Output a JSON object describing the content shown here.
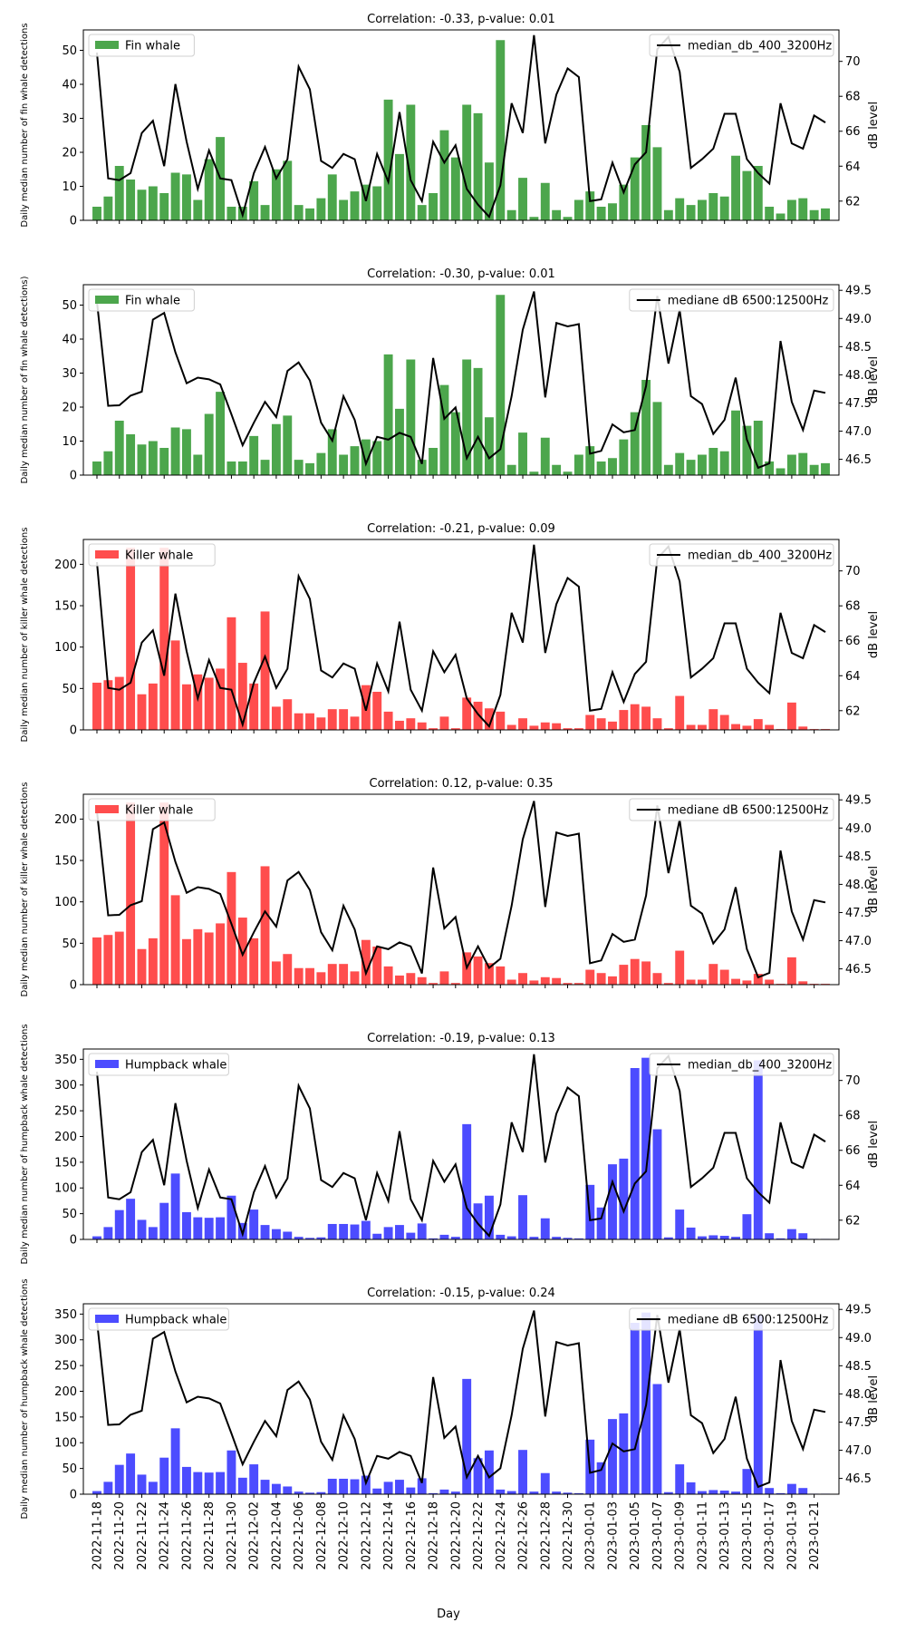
{
  "figure": {
    "xlabel": "Day"
  },
  "legend_colors": {
    "fin": "#4ca64c",
    "killer": "#ff4d4d",
    "humpback": "#4c4cff",
    "line": "#000000"
  },
  "chart_data": [
    {
      "type": "bar",
      "title": "Correlation: -0.33, p-value: 0.01",
      "ylabel": "Daily median number of fin whale detections",
      "y2label": "dB level",
      "bar_series": "Fin whale",
      "line_series": "median_db_400_3200Hz",
      "color": "#4ca64c",
      "ylim": [
        0,
        56
      ],
      "yticks": [
        0,
        10,
        20,
        30,
        40,
        50
      ],
      "y2lim": [
        60.9,
        71.8
      ],
      "y2ticks": [
        62,
        64,
        66,
        68,
        70
      ],
      "bar_key": "fin",
      "line_key": "db400"
    },
    {
      "type": "bar",
      "title": "Correlation: -0.30, p-value: 0.01",
      "ylabel": "Daily median number of fin whale detections)",
      "y2label": "dB level",
      "bar_series": "Fin whale",
      "line_series": "mediane dB 6500:12500Hz",
      "color": "#4ca64c",
      "ylim": [
        0,
        56
      ],
      "yticks": [
        0,
        10,
        20,
        30,
        40,
        50
      ],
      "y2lim": [
        46.22,
        49.6
      ],
      "y2ticks": [
        46.5,
        47.0,
        47.5,
        48.0,
        48.5,
        49.0,
        49.5
      ],
      "bar_key": "fin",
      "line_key": "db6500"
    },
    {
      "type": "bar",
      "title": "Correlation: -0.21, p-value: 0.09",
      "ylabel": "Daily median number of killer whale detections",
      "y2label": "dB level",
      "bar_series": "Killer whale",
      "line_series": "median_db_400_3200Hz",
      "color": "#ff4d4d",
      "ylim": [
        0,
        230
      ],
      "yticks": [
        0,
        50,
        100,
        150,
        200
      ],
      "y2lim": [
        60.9,
        71.8
      ],
      "y2ticks": [
        62,
        64,
        66,
        68,
        70
      ],
      "bar_key": "killer",
      "line_key": "db400"
    },
    {
      "type": "bar",
      "title": "Correlation: 0.12, p-value: 0.35",
      "ylabel": "Daily median number of killer whale detections",
      "y2label": "dB level",
      "bar_series": "Killer whale",
      "line_series": "mediane dB 6500:12500Hz",
      "color": "#ff4d4d",
      "ylim": [
        0,
        230
      ],
      "yticks": [
        0,
        50,
        100,
        150,
        200
      ],
      "y2lim": [
        46.22,
        49.6
      ],
      "y2ticks": [
        46.5,
        47.0,
        47.5,
        48.0,
        48.5,
        49.0,
        49.5
      ],
      "bar_key": "killer",
      "line_key": "db6500"
    },
    {
      "type": "bar",
      "title": "Correlation: -0.19, p-value: 0.13",
      "ylabel": "Daily median number of humpback whale detections",
      "y2label": "dB level",
      "bar_series": "Humpback whale",
      "line_series": "median_db_400_3200Hz",
      "color": "#4c4cff",
      "ylim": [
        0,
        370
      ],
      "yticks": [
        0,
        50,
        100,
        150,
        200,
        250,
        300,
        350
      ],
      "y2lim": [
        60.9,
        71.8
      ],
      "y2ticks": [
        62,
        64,
        66,
        68,
        70
      ],
      "bar_key": "humpback",
      "line_key": "db400"
    },
    {
      "type": "bar",
      "title": "Correlation: -0.15, p-value: 0.24",
      "ylabel": "Daily median number of humpback whale detections",
      "y2label": "dB level",
      "bar_series": "Humpback whale",
      "line_series": "mediane dB 6500:12500Hz",
      "color": "#4c4cff",
      "ylim": [
        0,
        370
      ],
      "yticks": [
        0,
        50,
        100,
        150,
        200,
        250,
        300,
        350
      ],
      "y2lim": [
        46.22,
        49.6
      ],
      "y2ticks": [
        46.5,
        47.0,
        47.5,
        48.0,
        48.5,
        49.0,
        49.5
      ],
      "bar_key": "humpback",
      "line_key": "db6500",
      "show_xticklabels": true
    }
  ],
  "series": {
    "dates": [
      "2022-11-18",
      "2022-11-19",
      "2022-11-20",
      "2022-11-21",
      "2022-11-22",
      "2022-11-23",
      "2022-11-24",
      "2022-11-25",
      "2022-11-26",
      "2022-11-27",
      "2022-11-28",
      "2022-11-29",
      "2022-11-30",
      "2022-12-01",
      "2022-12-02",
      "2022-12-03",
      "2022-12-04",
      "2022-12-05",
      "2022-12-06",
      "2022-12-07",
      "2022-12-08",
      "2022-12-09",
      "2022-12-10",
      "2022-12-11",
      "2022-12-12",
      "2022-12-13",
      "2022-12-14",
      "2022-12-15",
      "2022-12-16",
      "2022-12-17",
      "2022-12-18",
      "2022-12-19",
      "2022-12-20",
      "2022-12-21",
      "2022-12-22",
      "2022-12-23",
      "2022-12-24",
      "2022-12-25",
      "2022-12-26",
      "2022-12-27",
      "2022-12-28",
      "2022-12-29",
      "2022-12-30",
      "2022-12-31",
      "2023-01-01",
      "2023-01-02",
      "2023-01-03",
      "2023-01-04",
      "2023-01-05",
      "2023-01-06",
      "2023-01-07",
      "2023-01-08",
      "2023-01-09",
      "2023-01-10",
      "2023-01-11",
      "2023-01-12",
      "2023-01-13",
      "2023-01-14",
      "2023-01-15",
      "2023-01-16",
      "2023-01-17",
      "2023-01-18",
      "2023-01-19",
      "2023-01-20",
      "2023-01-21",
      "2023-01-22"
    ],
    "xticklabels": [
      "2022-11-18",
      "2022-11-20",
      "2022-11-22",
      "2022-11-24",
      "2022-11-26",
      "2022-11-28",
      "2022-11-30",
      "2022-12-02",
      "2022-12-04",
      "2022-12-06",
      "2022-12-08",
      "2022-12-10",
      "2022-12-12",
      "2022-12-14",
      "2022-12-16",
      "2022-12-18",
      "2022-12-20",
      "2022-12-22",
      "2022-12-24",
      "2022-12-26",
      "2022-12-28",
      "2022-12-30",
      "2023-01-01",
      "2023-01-03",
      "2023-01-05",
      "2023-01-07",
      "2023-01-09",
      "2023-01-11",
      "2023-01-13",
      "2023-01-15",
      "2023-01-17",
      "2023-01-19",
      "2023-01-21"
    ],
    "fin": [
      4,
      7,
      16,
      12,
      9,
      10,
      8,
      14,
      13.5,
      6,
      18,
      24.5,
      4,
      4,
      11.5,
      4.5,
      15,
      17.5,
      4.5,
      3.5,
      6.5,
      13.5,
      6,
      8.5,
      10.5,
      10,
      35.5,
      19.5,
      34,
      4.5,
      8,
      26.5,
      18.5,
      34,
      31.5,
      17,
      53,
      3,
      12.5,
      1,
      11,
      3,
      1,
      6,
      8.5,
      4,
      5,
      10.5,
      18.5,
      28,
      21.5,
      3,
      6.5,
      4.5,
      6,
      8,
      7,
      19,
      14.5,
      16,
      4,
      2,
      6,
      6.5,
      3,
      3.5
    ],
    "killer": [
      57,
      60,
      64,
      220,
      43,
      56,
      220,
      108,
      55,
      67,
      63,
      74,
      136,
      81,
      56,
      143,
      28,
      37,
      20,
      20,
      15,
      25,
      25,
      16,
      54,
      46,
      22,
      11,
      14,
      9,
      2,
      16,
      2,
      39,
      34,
      26,
      22,
      6,
      14,
      5,
      9,
      8,
      2,
      2,
      18,
      14,
      10,
      24,
      31,
      28,
      14,
      2,
      41,
      6,
      6,
      25,
      18,
      7,
      5,
      13,
      6,
      1,
      33,
      4,
      1,
      1
    ],
    "humpback": [
      6,
      24,
      57,
      79,
      38,
      24,
      71,
      128,
      53,
      43,
      42,
      43,
      85,
      32,
      58,
      28,
      20,
      15,
      5,
      3,
      4,
      30,
      30,
      29,
      36,
      11,
      24,
      28,
      13,
      31,
      2,
      9,
      5,
      224,
      70,
      85,
      9,
      6,
      86,
      5,
      41,
      5,
      3,
      2,
      106,
      62,
      146,
      157,
      333,
      353,
      214,
      4,
      58,
      23,
      6,
      8,
      7,
      5,
      49,
      348,
      12,
      2,
      20,
      12,
      1,
      1
    ],
    "db400": [
      70.5,
      63.3,
      63.2,
      63.6,
      65.9,
      66.6,
      64,
      68.7,
      65.4,
      62.7,
      64.9,
      63.3,
      63.2,
      61.2,
      63.6,
      65.1,
      63.3,
      64.4,
      69.7,
      68.4,
      64.3,
      63.9,
      64.7,
      64.4,
      62,
      64.7,
      63.1,
      67.1,
      63.2,
      62,
      65.4,
      64.2,
      65.2,
      62.7,
      61.8,
      61.1,
      62.9,
      67.6,
      65.9,
      71.5,
      65.3,
      68.1,
      69.6,
      69.1,
      62,
      62.1,
      64.2,
      62.5,
      64.1,
      64.8,
      70.7,
      71.4,
      69.4,
      63.9,
      64.4,
      65,
      67,
      67,
      64.4,
      63.6,
      63,
      67.6,
      65.3,
      65,
      66.9,
      66.5
    ],
    "db6500": [
      49.3,
      47.45,
      47.46,
      47.63,
      47.7,
      48.98,
      49.1,
      48.4,
      47.85,
      47.95,
      47.92,
      47.83,
      47.3,
      46.75,
      47.15,
      47.52,
      47.25,
      48.07,
      48.22,
      47.9,
      47.15,
      46.83,
      47.62,
      47.2,
      46.42,
      46.9,
      46.85,
      46.97,
      46.9,
      46.42,
      48.3,
      47.22,
      47.42,
      46.52,
      46.9,
      46.52,
      46.68,
      47.62,
      48.8,
      49.48,
      47.6,
      48.92,
      48.86,
      48.9,
      46.6,
      46.65,
      47.12,
      46.98,
      47.02,
      47.8,
      49.4,
      48.2,
      49.15,
      47.62,
      47.48,
      46.95,
      47.2,
      47.95,
      46.85,
      46.35,
      46.43,
      48.6,
      47.52,
      47.02,
      47.72,
      47.68
    ]
  }
}
